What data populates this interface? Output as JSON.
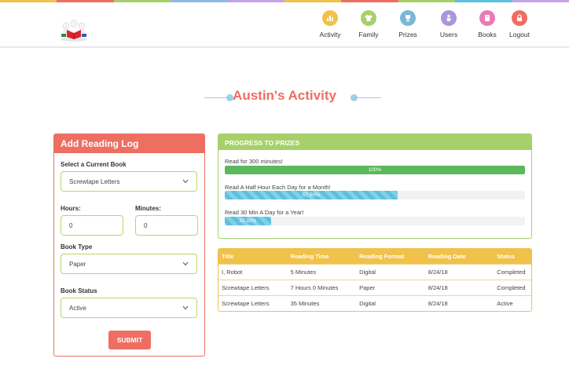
{
  "header": {
    "stripe_colors": [
      "#f0c24b",
      "#ee6e62",
      "#a6d06a",
      "#8fb9e6",
      "#c5a3e6",
      "#f0c24b",
      "#ee6e62",
      "#a6d06a",
      "#5bc0de",
      "#c5a3e6"
    ],
    "logo_icon": "kids-reading-logo-icon",
    "nav": [
      {
        "label": "Activity",
        "icon": "bar-chart-icon",
        "color": "#f0c24b"
      },
      {
        "label": "Family",
        "icon": "shirt-icon",
        "color": "#a6d06a"
      },
      {
        "label": "Prizes",
        "icon": "trophy-icon",
        "color": "#7ab8d6"
      },
      {
        "label": "Users",
        "icon": "user-icon",
        "color": "#a996dc"
      },
      {
        "label": "Books",
        "icon": "book-icon",
        "color": "#e97bb8"
      },
      {
        "label": "Logout",
        "icon": "lock-icon",
        "color": "#ee6e62"
      }
    ]
  },
  "page": {
    "title": "Austin's Activity"
  },
  "reading_log": {
    "heading": "Add Reading Log",
    "book_label": "Select a Current Book",
    "book_value": "Screwtape Letters",
    "hours_label": "Hours:",
    "hours_value": "0",
    "minutes_label": "Minutes:",
    "minutes_value": "0",
    "type_label": "Book Type",
    "type_value": "Paper",
    "status_label": "Book Status",
    "status_value": "Active",
    "submit_label": "SUBMIT"
  },
  "progress": {
    "heading": "PROGRESS TO PRIZES",
    "goals": [
      {
        "label": "Read for 300 minutes!",
        "percent": 100,
        "percent_label": "100%",
        "style": "green"
      },
      {
        "label": "Read A Half Hour Each Day for a Month!",
        "percent": 57.5,
        "percent_label": "57.50%",
        "style": "striped"
      },
      {
        "label": "Read 30 Min A Day for a Year!",
        "percent": 15.33,
        "percent_label": "15.33%",
        "style": "striped"
      }
    ]
  },
  "log_table": {
    "headers": [
      "Title",
      "Reading Time",
      "Reading Format",
      "Reading Date",
      "Status"
    ],
    "rows": [
      [
        "I, Robot",
        "5 Minutes",
        "Digital",
        "8/24/18",
        "Completed"
      ],
      [
        "Screwtape Letters",
        "7 Hours 0 Minutes",
        "Paper",
        "8/24/18",
        "Completed"
      ],
      [
        "Screwtape Letters",
        "35 Minutes",
        "Digital",
        "8/24/18",
        "Active"
      ]
    ]
  }
}
